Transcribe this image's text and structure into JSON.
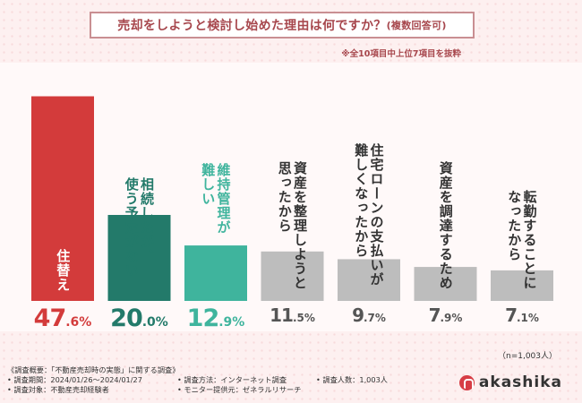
{
  "title_main": "売却をしようと検討し始めた理由は何ですか？",
  "title_sub": "(複数回答可)",
  "note": "※全10項目中上位7項目を抜粋",
  "sample_note": "（n=1,003人）",
  "footer": {
    "survey_summary": "《調査概要：「不動産売却時の実態」に関する調査》",
    "period": "• 調査期間：2024/01/26〜2024/01/27",
    "target": "• 調査対象：不動産売却経験者",
    "method": "• 調査方法：インターネット調査",
    "monitor": "• モニター提供元：ゼネラルリサーチ",
    "count": "• 調査人数：1,003人"
  },
  "logo_text": "akashika",
  "colors": {
    "red": "#d33b3b",
    "dark_green": "#237a6a",
    "teal": "#3fb49d",
    "gray": "#bdbdbd",
    "title": "#a7474d"
  },
  "chart_data": {
    "type": "bar",
    "categories": [
      "住替え",
      "相続したが、\n使う予定がない",
      "維持管理が\n難しい",
      "資産を整理しようと\n思ったから",
      "住宅ローンの支払いが\n難しくなったから",
      "資産を調達するため",
      "転勤することに\nなったから"
    ],
    "values": [
      47.6,
      20.0,
      12.9,
      11.5,
      9.7,
      7.9,
      7.1
    ],
    "pct_big": [
      "47",
      "20",
      "12",
      "11",
      "9",
      "7",
      "7"
    ],
    "pct_small": [
      ".6%",
      ".0%",
      ".9%",
      ".5%",
      ".7%",
      ".9%",
      ".1%"
    ],
    "ylim": [
      0,
      50
    ],
    "unit": "%"
  }
}
